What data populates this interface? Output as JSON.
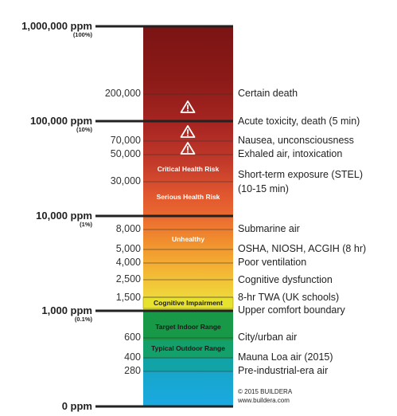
{
  "major_ticks": [
    {
      "label": "1,000,000 ppm",
      "pct": "(100%)"
    },
    {
      "label": "100,000 ppm",
      "pct": "(10%)"
    },
    {
      "label": "10,000 ppm",
      "pct": "(1%)"
    },
    {
      "label": "1,000 ppm",
      "pct": "(0.1%)"
    },
    {
      "label": "0 ppm",
      "pct": ""
    }
  ],
  "minor_ticks": [
    "200,000",
    "70,000",
    "50,000",
    "30,000",
    "8,000",
    "5,000",
    "4,000",
    "2,500",
    "1,500",
    "600",
    "400",
    "280"
  ],
  "zones": [
    {
      "label": "Critical Health Risk",
      "color": "#c0392b",
      "style": "light"
    },
    {
      "label": "Serious Health Risk",
      "color": "#e25a37",
      "style": "light"
    },
    {
      "label": "Unhealthy",
      "color": "#f08a2c",
      "style": "light"
    },
    {
      "label": "Cognitive Impairment",
      "color": "#e8e02c",
      "style": "dark"
    },
    {
      "label": "Target Indoor Range",
      "color": "#1fa752",
      "style": "dark"
    },
    {
      "label": "Typical Outdoor Range",
      "color": "#14a38a",
      "style": "dark"
    }
  ],
  "descriptions": [
    "Certain death",
    "Acute toxicity, death (5 min)",
    "Nausea, unconsciousness",
    "Exhaled air, intoxication",
    "Short-term exposure (STEL)",
    "(10-15 min)",
    "Submarine air",
    "OSHA, NIOSH, ACGIH (8 hr)",
    "Poor ventilation",
    "Cognitive dysfunction",
    "8-hr TWA (UK schools)",
    "Upper comfort boundary",
    "City/urban air",
    "Mauna Loa air (2015)",
    "Pre-industrial-era air"
  ],
  "warning_icons": [
    "warning-icon",
    "warning-icon",
    "warning-icon"
  ],
  "colors": {
    "top_dark_red": "#7b1414",
    "red": "#b8302a",
    "orange": "#f29a34",
    "yellow": "#f0e33a",
    "green": "#1e9c4e",
    "blue": "#1aa9e0"
  },
  "copyright": {
    "line1": "© 2015 BUILDERA",
    "line2": "www.buildera.com"
  }
}
